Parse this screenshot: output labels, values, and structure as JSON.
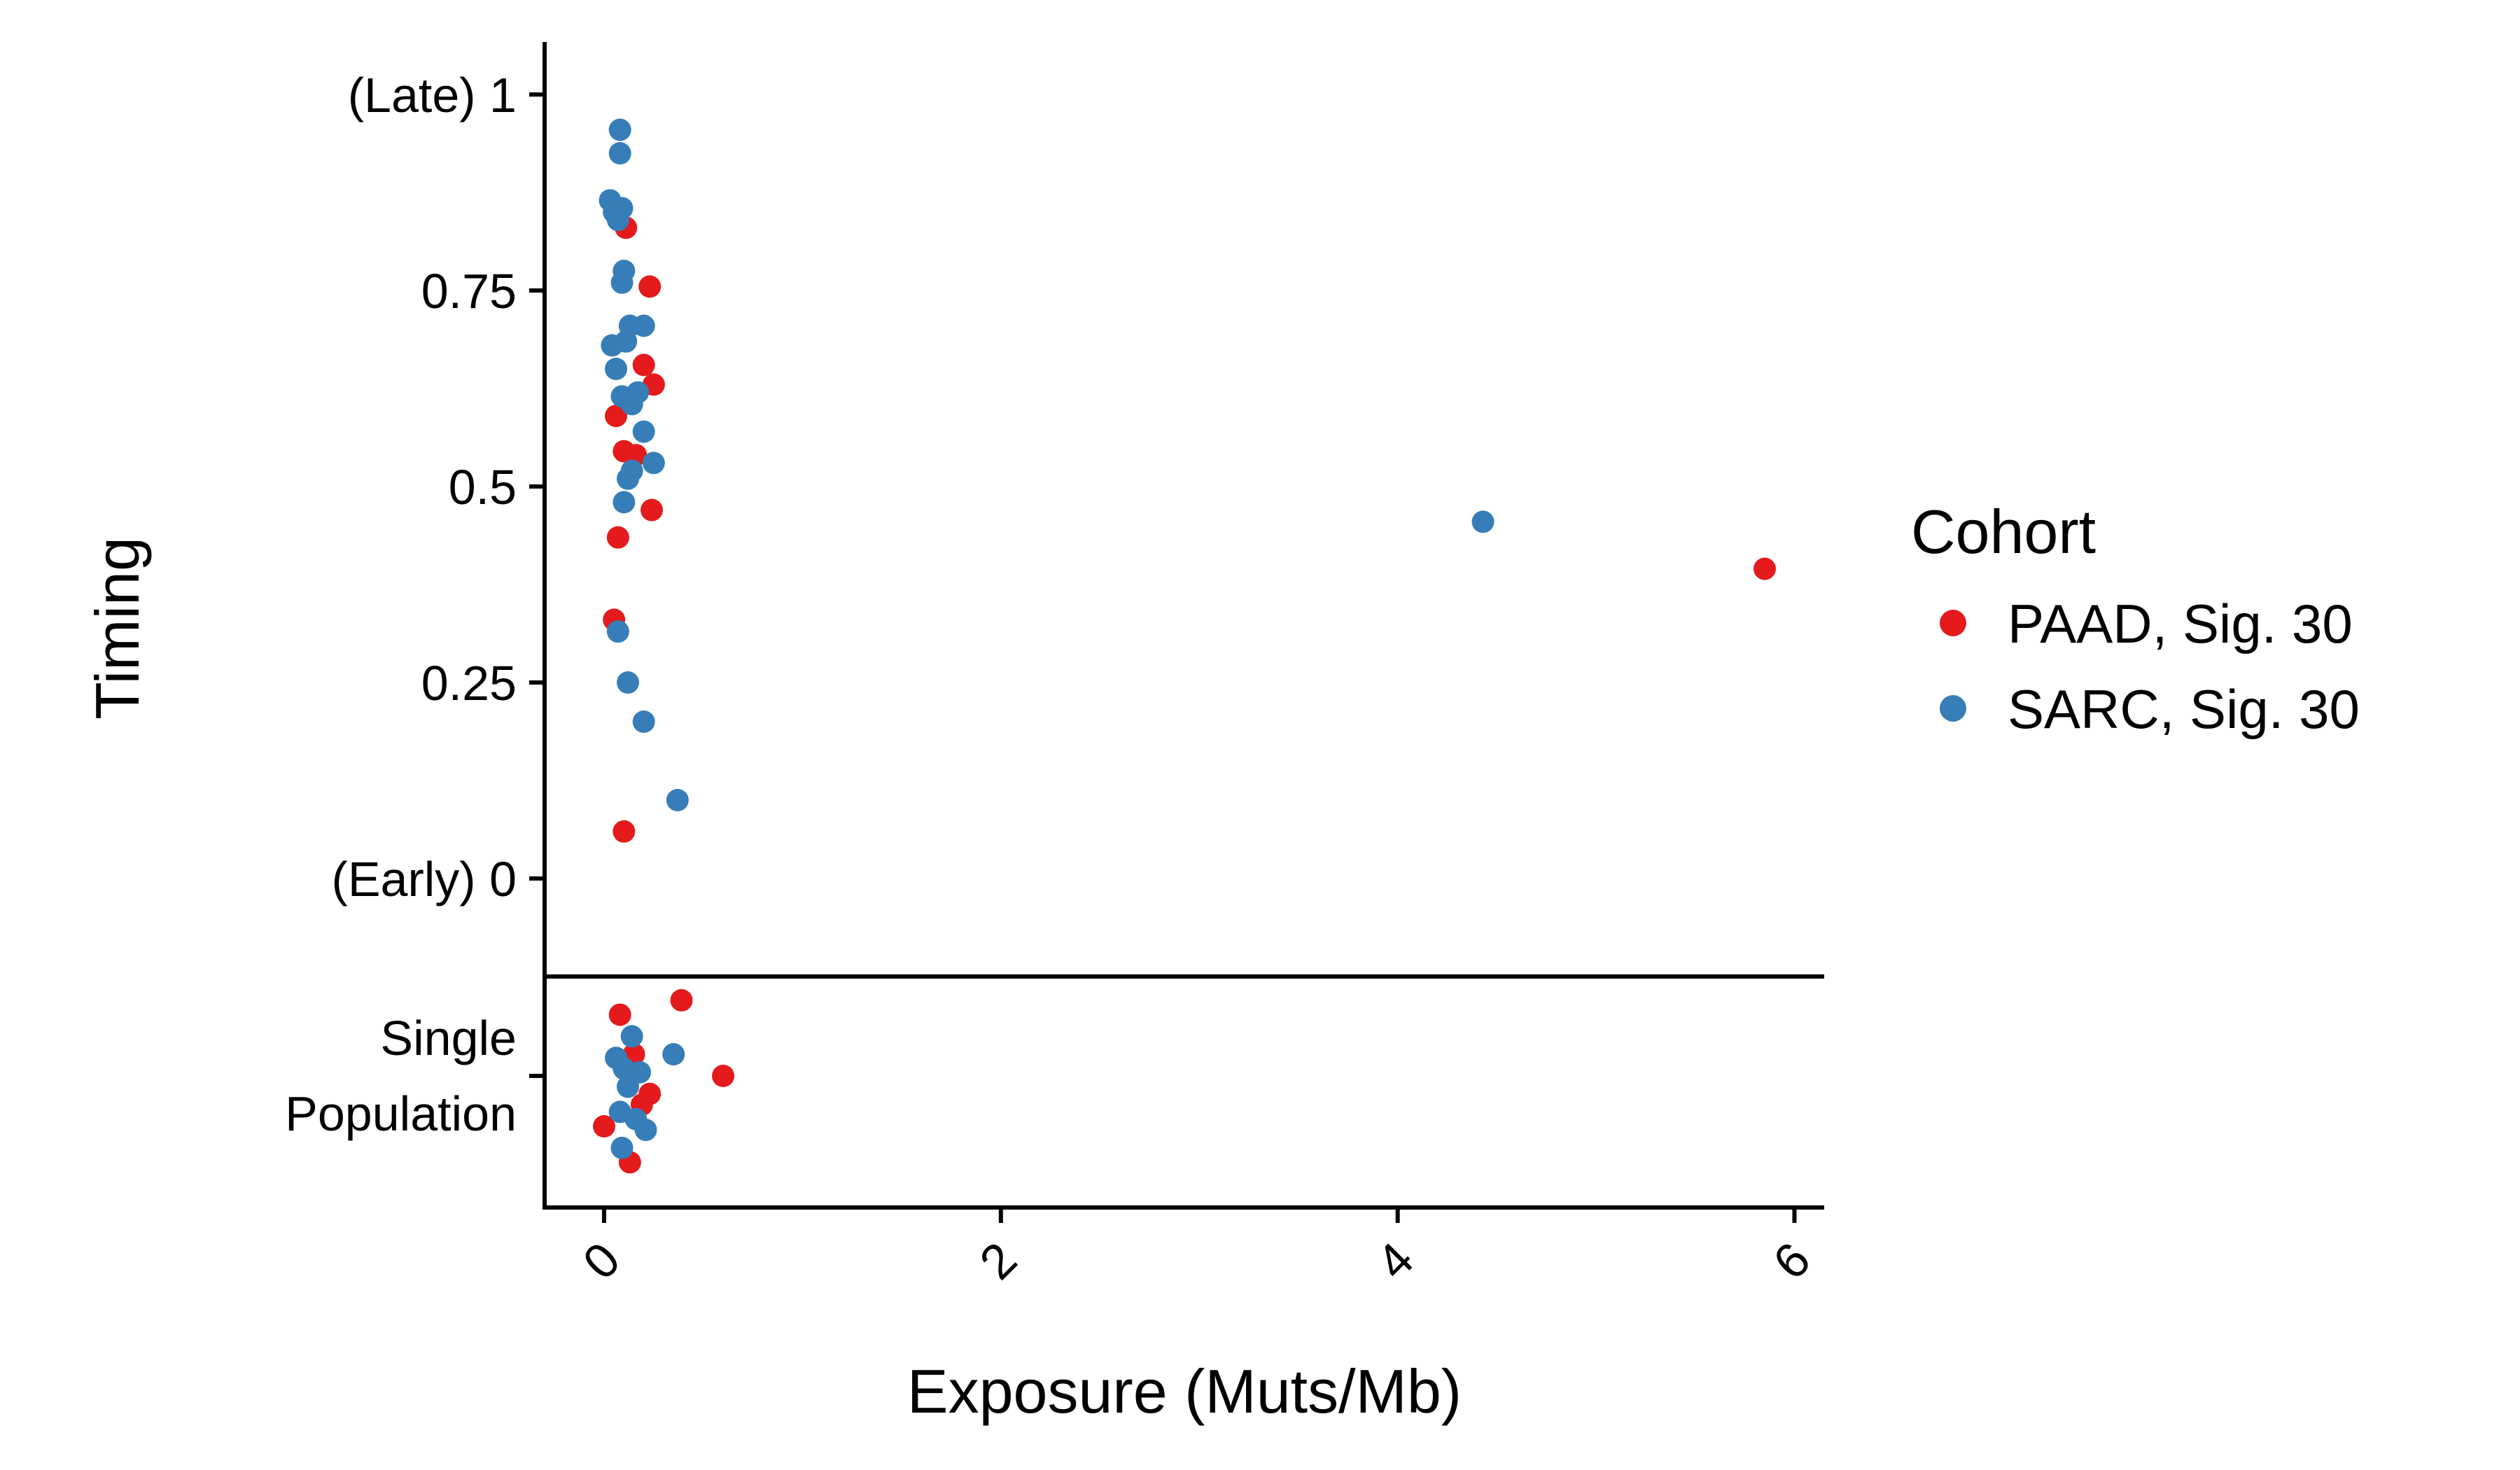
{
  "chart_data": {
    "type": "scatter",
    "xlabel": "Exposure (Muts/Mb)",
    "ylabel": "Timing",
    "xlim": [
      -0.3,
      6.15
    ],
    "ylim": [
      -0.12,
      1.07
    ],
    "x_ticks": [
      {
        "value": 0,
        "label": "0"
      },
      {
        "value": 2,
        "label": "2"
      },
      {
        "value": 4,
        "label": "4"
      },
      {
        "value": 6,
        "label": "6"
      }
    ],
    "y_ticks": [
      {
        "value": 1,
        "label": "(Late) 1"
      },
      {
        "value": 0.75,
        "label": "0.75"
      },
      {
        "value": 0.5,
        "label": "0.5"
      },
      {
        "value": 0.25,
        "label": "0.25"
      },
      {
        "value": 0,
        "label": "(Early) 0"
      }
    ],
    "single_panel": {
      "label_lines": [
        "Single",
        "Population"
      ],
      "ylim": [
        -0.35,
        0.35
      ]
    },
    "legend": {
      "title": "Cohort",
      "placement": "right"
    },
    "series": [
      {
        "name": "PAAD, Sig. 30",
        "color": "#e41a1c",
        "points": [
          {
            "x": 0.11,
            "y": 0.83
          },
          {
            "x": 0.23,
            "y": 0.755
          },
          {
            "x": 0.2,
            "y": 0.655
          },
          {
            "x": 0.25,
            "y": 0.63
          },
          {
            "x": 0.06,
            "y": 0.59
          },
          {
            "x": 0.1,
            "y": 0.545
          },
          {
            "x": 0.16,
            "y": 0.54
          },
          {
            "x": 0.24,
            "y": 0.47
          },
          {
            "x": 0.07,
            "y": 0.435
          },
          {
            "x": 0.05,
            "y": 0.33
          },
          {
            "x": 0.1,
            "y": 0.06
          },
          {
            "x": 5.85,
            "y": 0.395
          }
        ],
        "single": [
          {
            "x": 0.08,
            "y": 0.17
          },
          {
            "x": 0.39,
            "y": 0.21
          },
          {
            "x": 0.6,
            "y": 0.0
          },
          {
            "x": 0.23,
            "y": -0.05
          },
          {
            "x": 0.0,
            "y": -0.14
          },
          {
            "x": 0.13,
            "y": -0.24
          },
          {
            "x": 0.15,
            "y": 0.06
          },
          {
            "x": 0.19,
            "y": -0.08
          }
        ]
      },
      {
        "name": "SARC, Sig. 30",
        "color": "#377eb8",
        "points": [
          {
            "x": 0.08,
            "y": 0.955
          },
          {
            "x": 0.08,
            "y": 0.925
          },
          {
            "x": 0.03,
            "y": 0.865
          },
          {
            "x": 0.09,
            "y": 0.855
          },
          {
            "x": 0.05,
            "y": 0.85
          },
          {
            "x": 0.07,
            "y": 0.84
          },
          {
            "x": 0.1,
            "y": 0.775
          },
          {
            "x": 0.09,
            "y": 0.76
          },
          {
            "x": 0.2,
            "y": 0.705
          },
          {
            "x": 0.13,
            "y": 0.705
          },
          {
            "x": 0.11,
            "y": 0.685
          },
          {
            "x": 0.04,
            "y": 0.68
          },
          {
            "x": 0.06,
            "y": 0.65
          },
          {
            "x": 0.17,
            "y": 0.62
          },
          {
            "x": 0.09,
            "y": 0.615
          },
          {
            "x": 0.14,
            "y": 0.605
          },
          {
            "x": 0.2,
            "y": 0.57
          },
          {
            "x": 0.25,
            "y": 0.53
          },
          {
            "x": 0.14,
            "y": 0.52
          },
          {
            "x": 0.12,
            "y": 0.51
          },
          {
            "x": 0.1,
            "y": 0.48
          },
          {
            "x": 0.07,
            "y": 0.315
          },
          {
            "x": 0.12,
            "y": 0.25
          },
          {
            "x": 0.2,
            "y": 0.2
          },
          {
            "x": 0.37,
            "y": 0.1
          },
          {
            "x": 4.43,
            "y": 0.455
          }
        ],
        "single": [
          {
            "x": 0.14,
            "y": 0.11
          },
          {
            "x": 0.06,
            "y": 0.05
          },
          {
            "x": 0.1,
            "y": 0.02
          },
          {
            "x": 0.18,
            "y": 0.01
          },
          {
            "x": 0.35,
            "y": 0.06
          },
          {
            "x": 0.12,
            "y": -0.03
          },
          {
            "x": 0.08,
            "y": -0.1
          },
          {
            "x": 0.21,
            "y": -0.15
          },
          {
            "x": 0.16,
            "y": -0.12
          },
          {
            "x": 0.09,
            "y": -0.2
          }
        ]
      }
    ]
  }
}
